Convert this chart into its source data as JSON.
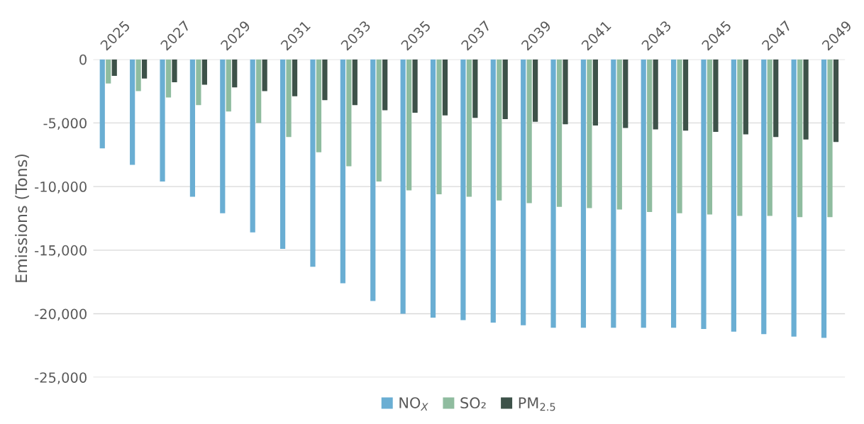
{
  "chart_data": {
    "type": "bar",
    "ylabel": "Emissions (Tons)",
    "categories": [
      "2025",
      null,
      "2027",
      null,
      "2029",
      null,
      "2031",
      null,
      "2033",
      null,
      "2035",
      null,
      "2037",
      null,
      "2039",
      null,
      "2041",
      null,
      "2043",
      null,
      "2045",
      null,
      "2047",
      null,
      "2049"
    ],
    "series": [
      {
        "name": "NO$_{X}$",
        "color": "#6aaed3",
        "values": [
          -7000,
          -8300,
          -9600,
          -10800,
          -12100,
          -13600,
          -14900,
          -16300,
          -17600,
          -19000,
          -20000,
          -20300,
          -20500,
          -20700,
          -20900,
          -21100,
          -21100,
          -21100,
          -21100,
          -21100,
          -21200,
          -21400,
          -21600,
          -21800,
          -21900
        ]
      },
      {
        "name": "SO₂",
        "color": "#8fbc9f",
        "values": [
          -1900,
          -2500,
          -3000,
          -3600,
          -4100,
          -5000,
          -6100,
          -7300,
          -8400,
          -9600,
          -10300,
          -10600,
          -10800,
          -11100,
          -11300,
          -11600,
          -11700,
          -11800,
          -12000,
          -12100,
          -12200,
          -12300,
          -12300,
          -12400,
          -12400
        ]
      },
      {
        "name": "PM$_{2.5}$",
        "color": "#3d5249",
        "values": [
          -1300,
          -1500,
          -1800,
          -2000,
          -2200,
          -2500,
          -2900,
          -3200,
          -3600,
          -4000,
          -4200,
          -4400,
          -4600,
          -4700,
          -4900,
          -5100,
          -5200,
          -5400,
          -5500,
          -5600,
          -5700,
          -5900,
          -6100,
          -6300,
          -6500
        ]
      }
    ],
    "ylim": [
      -25000,
      0
    ],
    "yticks": [
      {
        "value": -25000,
        "label": "-25,000"
      },
      {
        "value": -20000,
        "label": "-20,000"
      },
      {
        "value": -15000,
        "label": "-15,000"
      },
      {
        "value": -10000,
        "label": "-10,000"
      },
      {
        "value": -5000,
        "label": "-5,000"
      },
      0
    ],
    "grid": "y",
    "legend": "bottom"
  }
}
